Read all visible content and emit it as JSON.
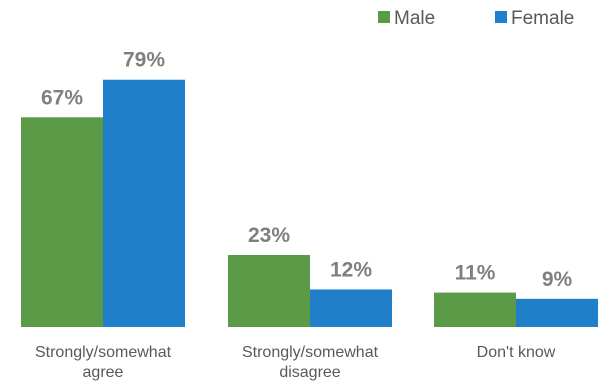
{
  "chart_data": {
    "type": "bar",
    "categories": [
      [
        "Strongly/somewhat",
        "agree"
      ],
      [
        "Strongly/somewhat",
        "disagree"
      ],
      [
        "Don't know"
      ]
    ],
    "series": [
      {
        "name": "Male",
        "color": "#5b9a46",
        "values": [
          67,
          23,
          11
        ],
        "labels": [
          "67%",
          "23%",
          "11%"
        ]
      },
      {
        "name": "Female",
        "color": "#1f7fc8",
        "values": [
          79,
          12,
          9
        ],
        "labels": [
          "79%",
          "12%",
          "9%"
        ]
      }
    ],
    "ylim": [
      0,
      100
    ],
    "grid": false,
    "legend": "top-right",
    "title": "",
    "xlabel": "",
    "ylabel": ""
  }
}
